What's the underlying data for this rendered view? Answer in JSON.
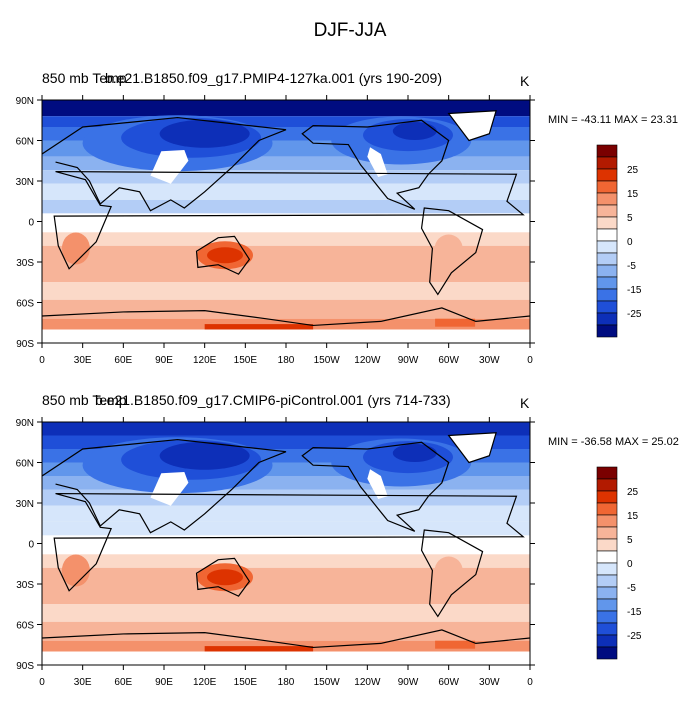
{
  "title": "DJF-JJA",
  "lat_labels": [
    "90N",
    "60N",
    "30N",
    "0",
    "30S",
    "60S",
    "90S"
  ],
  "lon_labels": [
    "0",
    "30E",
    "60E",
    "90E",
    "120E",
    "150E",
    "180",
    "150W",
    "120W",
    "90W",
    "60W",
    "30W",
    "0"
  ],
  "colorbar": {
    "labels": [
      "25",
      "15",
      "5",
      "0",
      "-5",
      "-15",
      "-25"
    ],
    "colors": [
      "#7a0000",
      "#b21a00",
      "#dd3300",
      "#f06633",
      "#f4916b",
      "#f7b499",
      "#fbd9c8",
      "#ffffff",
      "#d6e6fb",
      "#b3cdf6",
      "#8bb2f0",
      "#6196eb",
      "#3a72e6",
      "#1f4fd8",
      "#0d2fb8",
      "#000c80"
    ]
  },
  "panels": [
    {
      "left_label": "850 mb Temp",
      "center_label": "b.e21.B1850.f09_g17.PMIP4-127ka.001 (yrs 190-209)",
      "units": "K",
      "minmax": "MIN = -43.11  MAX =  23.31"
    },
    {
      "left_label": "850 mb Temp",
      "center_label": "b.e21.B1850.f09_g17.CMIP6-piControl.001 (yrs 714-733)",
      "units": "K",
      "minmax": "MIN = -36.58  MAX =  25.02"
    }
  ]
}
